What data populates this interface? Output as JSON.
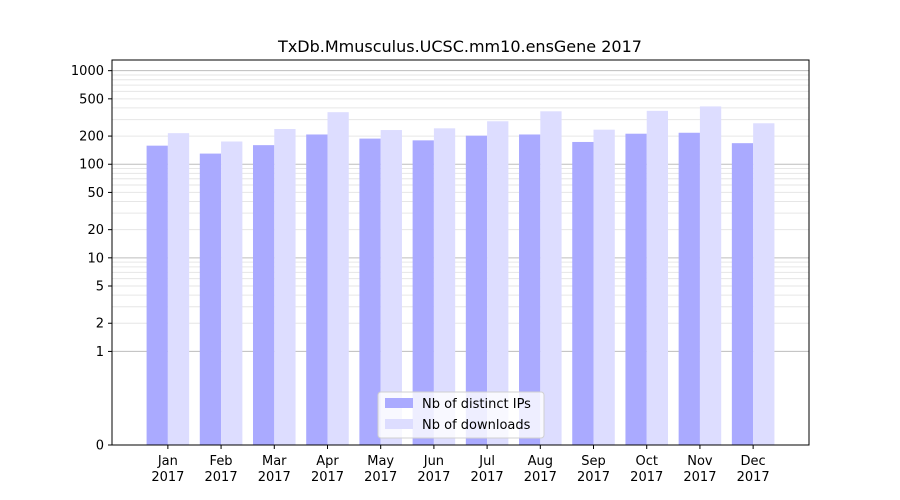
{
  "chart_data": {
    "type": "bar",
    "title": "TxDb.Mmusculus.UCSC.mm10.ensGene 2017",
    "xlabel": "",
    "ylabel": "",
    "categories": [
      [
        "Jan",
        "2017"
      ],
      [
        "Feb",
        "2017"
      ],
      [
        "Mar",
        "2017"
      ],
      [
        "Apr",
        "2017"
      ],
      [
        "May",
        "2017"
      ],
      [
        "Jun",
        "2017"
      ],
      [
        "Jul",
        "2017"
      ],
      [
        "Aug",
        "2017"
      ],
      [
        "Sep",
        "2017"
      ],
      [
        "Oct",
        "2017"
      ],
      [
        "Nov",
        "2017"
      ],
      [
        "Dec",
        "2017"
      ]
    ],
    "series": [
      {
        "name": "Nb of distinct IPs",
        "color": "#aaaaff",
        "values": [
          158,
          130,
          160,
          208,
          188,
          180,
          202,
          208,
          173,
          212,
          217,
          168
        ]
      },
      {
        "name": "Nb of downloads",
        "color": "#ddddff",
        "values": [
          215,
          175,
          238,
          360,
          232,
          242,
          288,
          368,
          234,
          372,
          415,
          274
        ]
      }
    ],
    "yscale": "symlog",
    "ylim": [
      0,
      1300
    ],
    "yticks": [
      {
        "value": 0,
        "label": "0"
      },
      {
        "value": 1,
        "label": "1"
      },
      {
        "value": 2,
        "label": "2"
      },
      {
        "value": 5,
        "label": "5"
      },
      {
        "value": 10,
        "label": "10"
      },
      {
        "value": 20,
        "label": "20"
      },
      {
        "value": 50,
        "label": "50"
      },
      {
        "value": 100,
        "label": "100"
      },
      {
        "value": 200,
        "label": "200"
      },
      {
        "value": 500,
        "label": "500"
      },
      {
        "value": 1000,
        "label": "1000"
      }
    ],
    "major_gridlines": [
      1,
      10,
      100,
      1000
    ],
    "grid": true,
    "legend_position": "bottom-center"
  }
}
